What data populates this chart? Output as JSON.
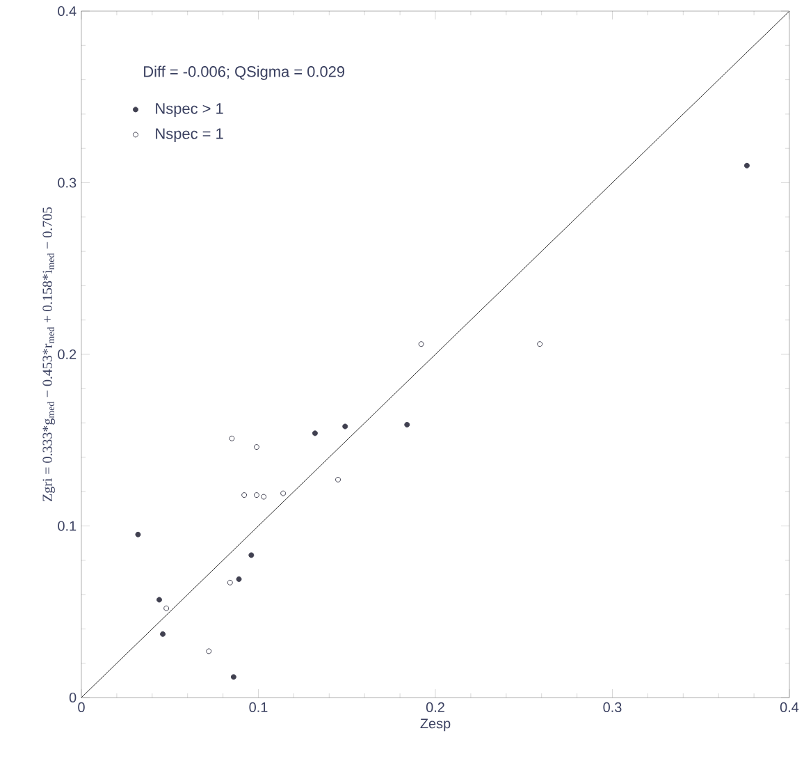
{
  "chart_data": {
    "type": "scatter",
    "xlabel": "Zesp",
    "ylabel": "Zgri = 0.333*g$_{med}$ − 0.453*r$_{med}$ + 0.158*i$_{med}$ − 0.705",
    "annotations": [
      "Diff = -0.006; QSigma = 0.029"
    ],
    "xlim": [
      0,
      0.4
    ],
    "ylim": [
      0,
      0.4
    ],
    "xticks": [
      0,
      0.1,
      0.2,
      0.3,
      0.4
    ],
    "yticks": [
      0,
      0.1,
      0.2,
      0.3,
      0.4
    ],
    "legend": "top left",
    "grid": false,
    "series": [
      {
        "name": "Nspec > 1",
        "marker": "circle",
        "color": "#404050",
        "x": [
          0.032,
          0.044,
          0.046,
          0.086,
          0.089,
          0.096,
          0.132,
          0.149,
          0.184,
          0.376
        ],
        "values": [
          0.095,
          0.057,
          0.037,
          0.012,
          0.069,
          0.083,
          0.154,
          0.158,
          0.159,
          0.31
        ]
      },
      {
        "name": "Nspec = 1",
        "marker": "circle",
        "color": "#404050",
        "x": [
          0.048,
          0.072,
          0.084,
          0.085,
          0.092,
          0.099,
          0.099,
          0.103,
          0.114,
          0.145,
          0.192,
          0.259
        ],
        "values": [
          0.052,
          0.027,
          0.067,
          0.151,
          0.118,
          0.146,
          0.118,
          0.117,
          0.119,
          0.127,
          0.206,
          0.206
        ]
      },
      {
        "type": "line",
        "marker": "none",
        "color": "#303030",
        "x": [
          0,
          0.4
        ],
        "values": [
          0,
          0.4
        ]
      }
    ]
  }
}
